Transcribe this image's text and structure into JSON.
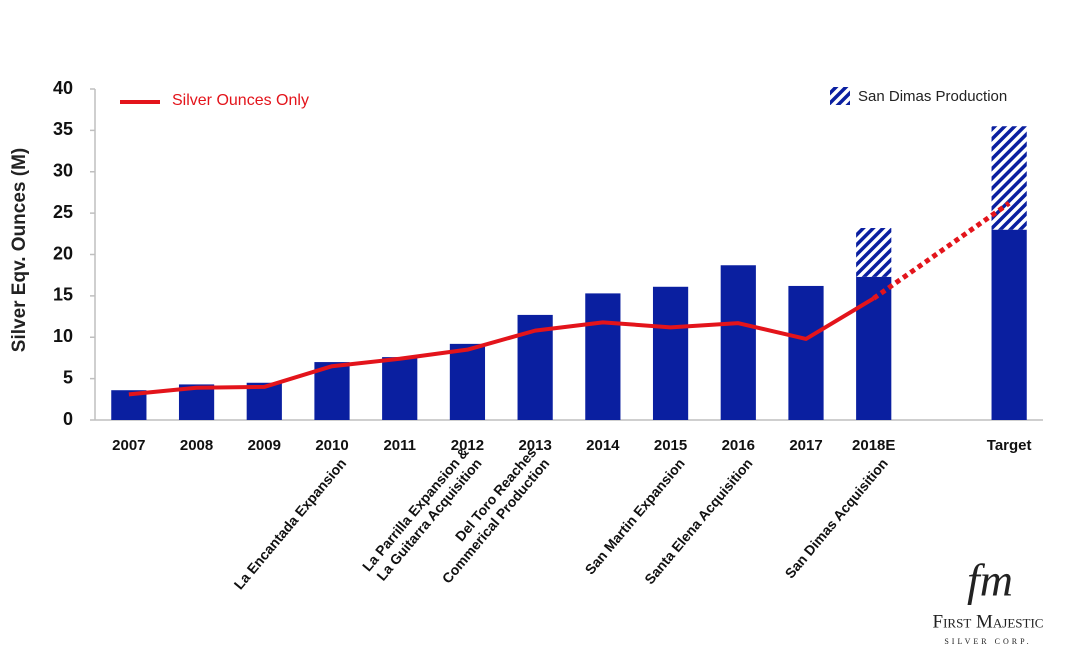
{
  "chart_data": {
    "type": "bar",
    "stacked": true,
    "ylabel": "Silver  Eqv. Ounces (M)",
    "categories": [
      "2007",
      "2008",
      "2009",
      "2010",
      "2011",
      "2012",
      "2013",
      "2014",
      "2015",
      "2016",
      "2017",
      "2018E",
      null,
      "Target"
    ],
    "series": [
      {
        "color": "#0a1fa0",
        "values": [
          3.6,
          4.3,
          4.5,
          7.0,
          7.6,
          9.2,
          12.7,
          15.3,
          16.1,
          18.7,
          16.2,
          17.3,
          null,
          23.0
        ]
      },
      {
        "name": "San Dimas Production",
        "color": "#0a1fa0",
        "pattern": "hatch",
        "values": [
          null,
          null,
          null,
          null,
          null,
          null,
          null,
          null,
          null,
          null,
          null,
          5.9,
          null,
          12.5
        ]
      },
      {
        "name": "Silver Ounces Only",
        "type": "line",
        "color": "#e3141b",
        "gap_style": "dotted",
        "values": [
          3.1,
          3.9,
          4.0,
          6.5,
          7.4,
          8.5,
          10.8,
          11.8,
          11.2,
          11.7,
          9.8,
          14.7,
          null,
          26.2
        ]
      }
    ],
    "milestones": [
      null,
      null,
      null,
      [
        "La Encantada Expansion"
      ],
      null,
      [
        "La Parrilla Expansion &",
        "La Guitarra Acquisition"
      ],
      [
        "Del Toro Reaches",
        "Commerical Production"
      ],
      null,
      [
        "San Martin Expansion"
      ],
      [
        "Santa Elena Acquisition"
      ],
      null,
      [
        "San Dimas Acquisition"
      ],
      null,
      null
    ],
    "ylim": [
      0,
      40
    ],
    "yticks": [
      0,
      5,
      10,
      15,
      20,
      25,
      30,
      35,
      40
    ],
    "grid": false
  },
  "logo": {
    "mark": "fm",
    "name": "First Majestic",
    "sub": "Silver Corp."
  }
}
